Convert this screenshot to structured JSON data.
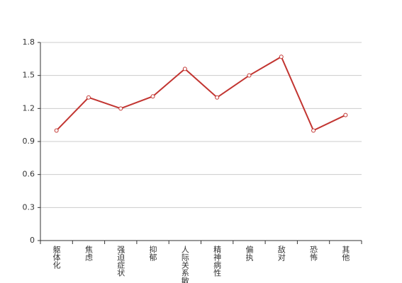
{
  "chart_data": {
    "type": "line",
    "categories": [
      "躯体化",
      "焦虑",
      "强迫症状",
      "抑郁",
      "人际关系敏感",
      "精神病性",
      "偏执",
      "敌对",
      "恐怖",
      "其他"
    ],
    "values": [
      1.0,
      1.3,
      1.2,
      1.31,
      1.56,
      1.3,
      1.5,
      1.67,
      1.0,
      1.14
    ],
    "color": "#c23531",
    "ylim": [
      0,
      1.8
    ],
    "yticks": [
      0,
      0.3,
      0.6,
      0.9,
      1.2,
      1.5,
      1.8
    ],
    "grid": true
  }
}
